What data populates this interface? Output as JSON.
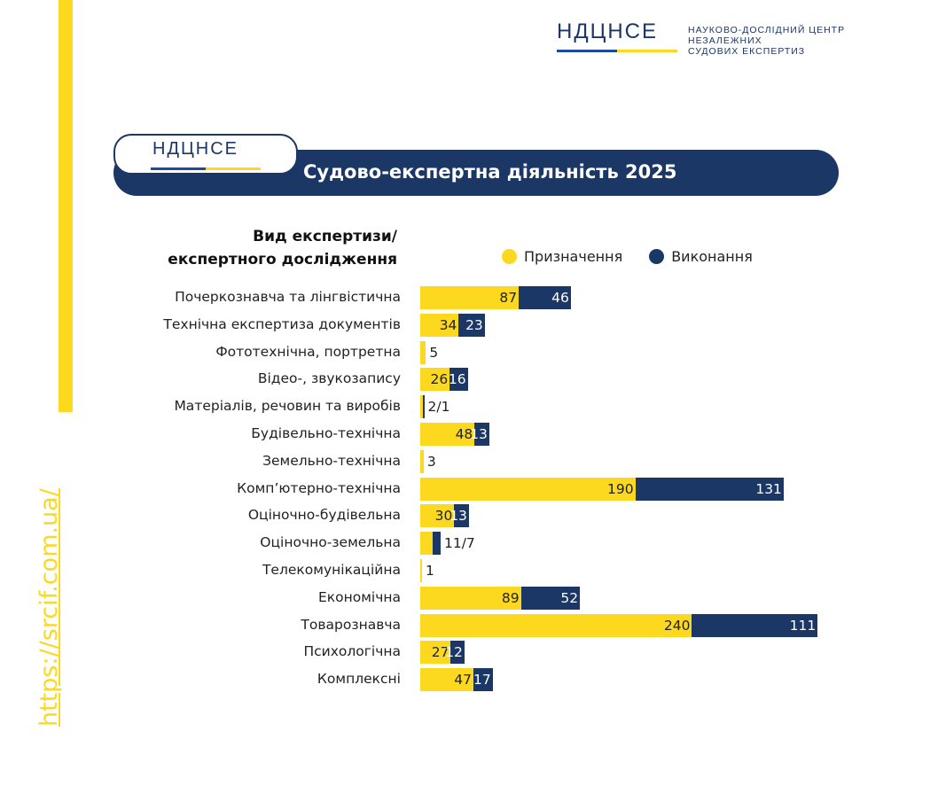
{
  "header": {
    "logo_abbr": "НДЦНСЕ",
    "logo_full": [
      "НАУКОВО-ДОСЛІДНИЙ ЦЕНТР",
      "НЕЗАЛЕЖНИХ",
      "СУДОВИХ ЕКСПЕРТИЗ"
    ]
  },
  "side_url": "https://srcif.com.ua/",
  "banner": {
    "badge": "НДЦНСЕ",
    "title": "Судово-експертна діяльність 2025"
  },
  "colors": {
    "assigned": "#fcd81f",
    "done": "#1b3765"
  },
  "chart_data": {
    "type": "bar",
    "orientation": "horizontal",
    "stacked": true,
    "title": "Судово-експертна діяльність 2025",
    "category_header": [
      "Вид експертизи/",
      "експертного дослідження"
    ],
    "legend": [
      "Призначення",
      "Виконання"
    ],
    "legend_position": "top",
    "categories": [
      "Почеркознавча та лінгвістична",
      "Технічна експертиза документів",
      "Фототехнічна, портретна",
      "Відео-, звукозапису",
      "Матеріалів, речовин та виробів",
      "Будівельно-технічна",
      "Земельно-технічна",
      "Комп’ютерно-технічна",
      "Оціночно-будівельна",
      "Оціночно-земельна",
      "Телекомунікаційна",
      "Економічна",
      "Товарознавча",
      "Психологічна",
      "Комплексні"
    ],
    "series": [
      {
        "name": "Призначення",
        "values": [
          87,
          34,
          5,
          26,
          2,
          48,
          3,
          190,
          30,
          11,
          1,
          89,
          240,
          27,
          47
        ]
      },
      {
        "name": "Виконання",
        "values": [
          46,
          23,
          null,
          16,
          1,
          13,
          null,
          131,
          13,
          7,
          null,
          52,
          111,
          12,
          17
        ]
      }
    ]
  }
}
